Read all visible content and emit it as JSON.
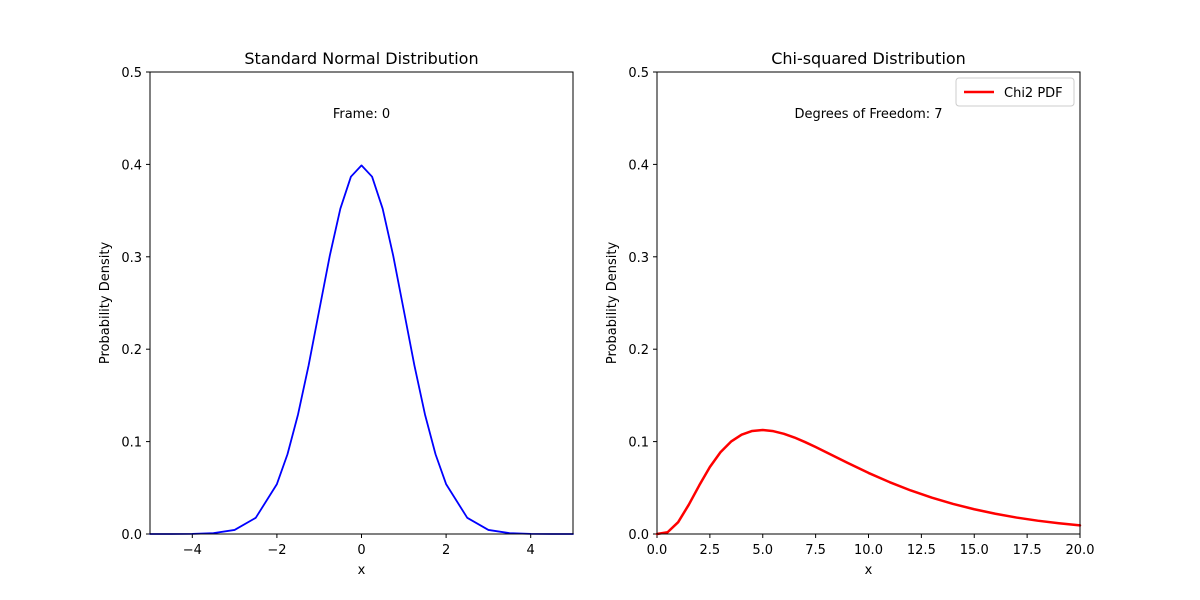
{
  "chart_data": [
    {
      "type": "line",
      "title": "Standard Normal Distribution",
      "xlabel": "x",
      "ylabel": "Probability Density",
      "xlim": [
        -5,
        5
      ],
      "ylim": [
        0,
        0.5
      ],
      "xticks": [
        -4,
        -2,
        0,
        2,
        4
      ],
      "xtick_labels": [
        "−4",
        "−2",
        "0",
        "2",
        "4"
      ],
      "yticks": [
        0.0,
        0.1,
        0.2,
        0.3,
        0.4,
        0.5
      ],
      "ytick_labels": [
        "0.0",
        "0.1",
        "0.2",
        "0.3",
        "0.4",
        "0.5"
      ],
      "grid": false,
      "annotation": "Frame: 0",
      "series": [
        {
          "color": "#0000ff",
          "x": [
            -5,
            -4.5,
            -4,
            -3.5,
            -3,
            -2.5,
            -2,
            -1.75,
            -1.5,
            -1.25,
            -1,
            -0.75,
            -0.5,
            -0.25,
            0,
            0.25,
            0.5,
            0.75,
            1,
            1.25,
            1.5,
            1.75,
            2,
            2.5,
            3,
            3.5,
            4,
            4.5,
            5
          ],
          "y": [
            0.0,
            0.0,
            0.0001,
            0.0009,
            0.0044,
            0.0175,
            0.054,
            0.0863,
            0.1295,
            0.1826,
            0.242,
            0.3011,
            0.3521,
            0.3867,
            0.3989,
            0.3867,
            0.3521,
            0.3011,
            0.242,
            0.1826,
            0.1295,
            0.0863,
            0.054,
            0.0175,
            0.0044,
            0.0009,
            0.0001,
            0.0,
            0.0
          ]
        }
      ]
    },
    {
      "type": "line",
      "title": "Chi-squared Distribution",
      "xlabel": "x",
      "ylabel": "Probability Density",
      "xlim": [
        0,
        20
      ],
      "ylim": [
        0,
        0.5
      ],
      "xticks": [
        0,
        2.5,
        5,
        7.5,
        10,
        12.5,
        15,
        17.5,
        20
      ],
      "xtick_labels": [
        "0.0",
        "2.5",
        "5.0",
        "7.5",
        "10.0",
        "12.5",
        "15.0",
        "17.5",
        "20.0"
      ],
      "yticks": [
        0.0,
        0.1,
        0.2,
        0.3,
        0.4,
        0.5
      ],
      "ytick_labels": [
        "0.0",
        "0.1",
        "0.2",
        "0.3",
        "0.4",
        "0.5"
      ],
      "grid": false,
      "annotation": "Degrees of Freedom: 7",
      "legend": {
        "position": "upper right"
      },
      "series": [
        {
          "name": "Chi2 PDF",
          "color": "#ff0000",
          "x": [
            0,
            0.5,
            1,
            1.5,
            2,
            2.5,
            3,
            3.5,
            4,
            4.5,
            5,
            5.5,
            6,
            6.5,
            7,
            7.5,
            8,
            9,
            10,
            11,
            12,
            13,
            14,
            15,
            16,
            17,
            18,
            19,
            20
          ],
          "y": [
            0.0,
            0.0019,
            0.0128,
            0.0316,
            0.0527,
            0.0725,
            0.0885,
            0.1,
            0.1075,
            0.1115,
            0.1125,
            0.1113,
            0.1084,
            0.1044,
            0.0995,
            0.0941,
            0.0885,
            0.0771,
            0.0661,
            0.0561,
            0.0471,
            0.0393,
            0.0325,
            0.0268,
            0.0219,
            0.0178,
            0.0144,
            0.0116,
            0.0093
          ]
        }
      ]
    }
  ]
}
